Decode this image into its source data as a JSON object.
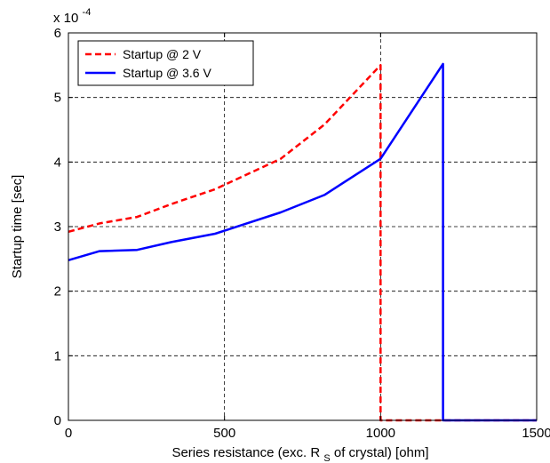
{
  "chart_data": {
    "type": "line",
    "title": "",
    "xlabel": {
      "main": "Series resistance (exc. R",
      "sub": "S",
      "tail": " of crystal) [ohm]"
    },
    "ylabel": "Startup time [sec]",
    "y_multiplier": {
      "base": "x 10",
      "exponent": "-4"
    },
    "xlim": [
      0,
      1500
    ],
    "ylim": [
      0,
      6
    ],
    "x_ticks": [
      0,
      500,
      1000,
      1500
    ],
    "x_tick_labels": [
      "0",
      "500",
      "1000",
      "1500"
    ],
    "y_ticks": [
      0,
      1,
      2,
      3,
      4,
      5,
      6
    ],
    "y_tick_labels": [
      "0",
      "1",
      "2",
      "3",
      "4",
      "5",
      "6"
    ],
    "grid": true,
    "legend_position": "top-left",
    "series": [
      {
        "name": "Startup @ 2 V",
        "color": "#ff0000",
        "style": "dashed",
        "x": [
          0,
          100,
          220,
          330,
          470,
          680,
          820,
          1000,
          1000,
          1200,
          1500
        ],
        "y": [
          2.92,
          3.05,
          3.15,
          3.35,
          3.58,
          4.05,
          4.58,
          5.5,
          0,
          0,
          0
        ]
      },
      {
        "name": "Startup @ 3.6 V",
        "color": "#0000ff",
        "style": "solid",
        "x": [
          0,
          100,
          220,
          330,
          470,
          680,
          820,
          1000,
          1200,
          1200,
          1500
        ],
        "y": [
          2.48,
          2.62,
          2.64,
          2.76,
          2.89,
          3.22,
          3.49,
          4.05,
          5.52,
          0,
          0
        ]
      }
    ]
  }
}
